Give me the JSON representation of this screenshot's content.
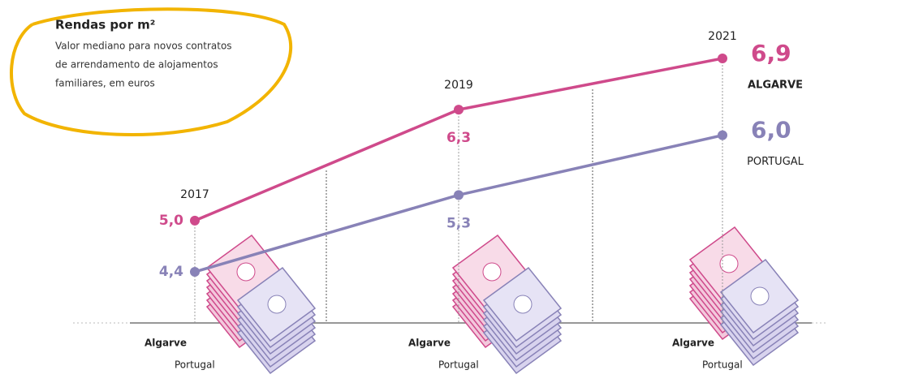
{
  "chart_data": {
    "type": "line",
    "title": "Rendas por m²",
    "subtitle": [
      "Valor mediano para novos contratos",
      "de arrendamento de alojamentos",
      "familiares, em euros"
    ],
    "categories": [
      "2017",
      "2019",
      "2021"
    ],
    "series": [
      {
        "name": "ALGARVE",
        "color": "#cf4a8b",
        "values": [
          5.0,
          6.3,
          6.9
        ],
        "value_labels": [
          "5,0",
          "6,3",
          "6,9"
        ]
      },
      {
        "name": "PORTUGAL",
        "color": "#8882b7",
        "values": [
          4.4,
          5.3,
          6.0
        ],
        "value_labels": [
          "4,4",
          "5,3",
          "6,0"
        ]
      }
    ],
    "base_labels": [
      "Algarve",
      "Portugal"
    ]
  }
}
